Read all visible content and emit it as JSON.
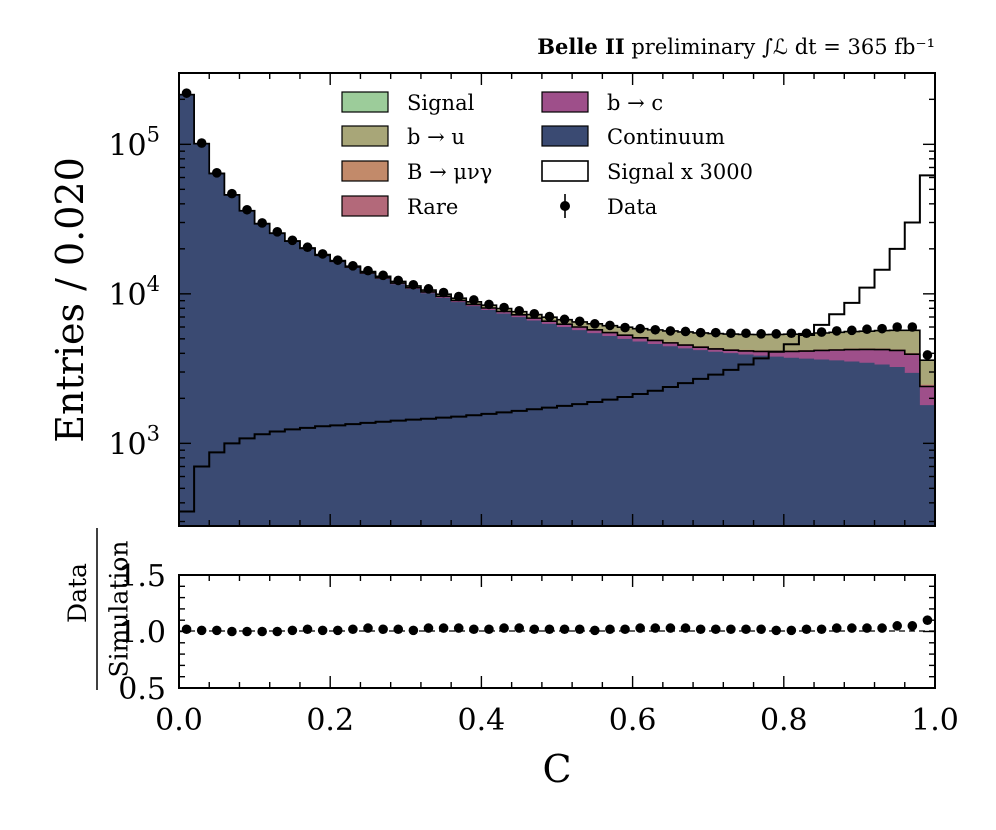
{
  "chart_data": {
    "type": "histogram",
    "header": {
      "experiment": "Belle II",
      "status": "preliminary",
      "lumi_text": "∫ℒ dt = 365 fb⁻¹"
    },
    "bins": {
      "low": 0.0,
      "high": 1.0,
      "count": 50,
      "width": 0.02
    },
    "main": {
      "ylabel": "Entries / 0.020",
      "yscale": "log",
      "ylim": [
        280,
        300000
      ],
      "ytick_values": [
        1000,
        10000,
        100000
      ],
      "ytick_labels": [
        "10",
        "10",
        "10"
      ],
      "ytick_exponents": [
        "3",
        "4",
        "5"
      ],
      "stack_order": [
        "Continuum",
        "b → c",
        "Rare",
        "B → μνγ",
        "b → u",
        "Signal"
      ],
      "colors": {
        "Continuum": "#3a4a72",
        "b → c": "#9e4f8a",
        "Rare": "#b3697a",
        "B → μνγ": "#c28a6a",
        "b → u": "#a8a678",
        "Signal": "#9ccc9a"
      },
      "total_mc": [
        215000,
        101000,
        64000,
        46000,
        36000,
        29500,
        25500,
        22600,
        20300,
        18300,
        16700,
        15300,
        14100,
        13100,
        12100,
        11300,
        10600,
        9950,
        9350,
        8850,
        8400,
        7980,
        7600,
        7270,
        6980,
        6720,
        6490,
        6300,
        6120,
        5980,
        5850,
        5740,
        5650,
        5560,
        5480,
        5420,
        5380,
        5350,
        5340,
        5350,
        5370,
        5410,
        5470,
        5530,
        5590,
        5630,
        5680,
        5700,
        5700,
        3600
      ],
      "continuum": [
        215000,
        101000,
        63500,
        45700,
        35700,
        29200,
        25200,
        22300,
        19900,
        17900,
        16300,
        14900,
        13600,
        12600,
        11600,
        10800,
        10100,
        9400,
        8800,
        8270,
        7800,
        7380,
        6990,
        6630,
        6300,
        6000,
        5720,
        5460,
        5220,
        5000,
        4800,
        4620,
        4460,
        4320,
        4200,
        4100,
        4010,
        3930,
        3860,
        3800,
        3740,
        3690,
        3640,
        3590,
        3530,
        3460,
        3370,
        3240,
        2960,
        1800
      ],
      "bc": [
        215000,
        101000,
        63800,
        45900,
        35900,
        29400,
        25400,
        22500,
        20100,
        18100,
        16500,
        15100,
        13800,
        12800,
        11800,
        11000,
        10300,
        9620,
        9030,
        8500,
        8040,
        7620,
        7240,
        6880,
        6560,
        6270,
        6000,
        5750,
        5510,
        5290,
        5080,
        4880,
        4700,
        4540,
        4400,
        4280,
        4200,
        4150,
        4120,
        4110,
        4120,
        4140,
        4180,
        4210,
        4240,
        4250,
        4240,
        4180,
        3950,
        2400
      ],
      "rare": [
        215000,
        101000,
        63850,
        45950,
        35950,
        29450,
        25450,
        22550,
        20150,
        18150,
        16550,
        15150,
        13850,
        12850,
        11850,
        11050,
        10350,
        9670,
        9080,
        8550,
        8090,
        7670,
        7290,
        6930,
        6610,
        6320,
        6050,
        5800,
        5560,
        5340,
        5130,
        4930,
        4750,
        4590,
        4450,
        4330,
        4250,
        4200,
        4170,
        4160,
        4170,
        4190,
        4230,
        4260,
        4290,
        4300,
        4290,
        4230,
        4000,
        2450
      ],
      "bmunug": [
        215000,
        101000,
        63870,
        45970,
        35970,
        29470,
        25470,
        22570,
        20170,
        18170,
        16570,
        15170,
        13870,
        12870,
        11870,
        11070,
        10370,
        9690,
        9100,
        8570,
        8110,
        7690,
        7310,
        6950,
        6630,
        6340,
        6070,
        5820,
        5580,
        5360,
        5150,
        4950,
        4770,
        4610,
        4470,
        4350,
        4270,
        4220,
        4190,
        4180,
        4190,
        4210,
        4250,
        4280,
        4310,
        4320,
        4310,
        4250,
        4020,
        2470
      ],
      "signal_x3000": [
        350,
        700,
        870,
        1000,
        1080,
        1150,
        1200,
        1240,
        1270,
        1300,
        1320,
        1345,
        1370,
        1395,
        1420,
        1440,
        1460,
        1485,
        1510,
        1540,
        1575,
        1610,
        1650,
        1690,
        1735,
        1780,
        1830,
        1890,
        1960,
        2040,
        2140,
        2250,
        2380,
        2530,
        2700,
        2880,
        3100,
        3370,
        3700,
        4100,
        4600,
        5300,
        6200,
        7300,
        8700,
        11000,
        14500,
        20000,
        30000,
        62000
      ],
      "data": [
        220000,
        102000,
        64500,
        46800,
        36500,
        29800,
        26000,
        22800,
        20500,
        18500,
        16800,
        15400,
        14300,
        13300,
        12300,
        11500,
        10800,
        10200,
        9600,
        9100,
        8500,
        8100,
        7700,
        7350,
        7050,
        6750,
        6550,
        6300,
        6150,
        5950,
        5850,
        5750,
        5650,
        5600,
        5500,
        5500,
        5450,
        5450,
        5400,
        5400,
        5450,
        5450,
        5550,
        5650,
        5700,
        5800,
        5850,
        6000,
        6000,
        3900
      ]
    },
    "ratio": {
      "ylabel_numerator": "Data",
      "ylabel_denominator": "Simulation",
      "ylim": [
        0.5,
        1.5
      ],
      "ytick_labels": [
        "0.5",
        "1.0",
        "1.5"
      ],
      "values": [
        1.02,
        1.01,
        1.01,
        1.0,
        1.0,
        1.0,
        1.0,
        1.01,
        1.02,
        1.01,
        1.01,
        1.02,
        1.03,
        1.02,
        1.02,
        1.01,
        1.03,
        1.03,
        1.03,
        1.02,
        1.02,
        1.03,
        1.03,
        1.02,
        1.02,
        1.02,
        1.02,
        1.01,
        1.02,
        1.02,
        1.03,
        1.03,
        1.03,
        1.03,
        1.02,
        1.02,
        1.02,
        1.02,
        1.02,
        1.01,
        1.01,
        1.02,
        1.02,
        1.03,
        1.03,
        1.03,
        1.03,
        1.05,
        1.05,
        1.1
      ]
    },
    "xlabel": "C",
    "xticks": [
      "0.0",
      "0.2",
      "0.4",
      "0.6",
      "0.8",
      "1.0"
    ],
    "legend": {
      "placement": "top-center",
      "entries": [
        {
          "label": "Signal",
          "kind": "fill",
          "color": "#9ccc9a"
        },
        {
          "label": "b → c",
          "kind": "fill",
          "color": "#9e4f8a"
        },
        {
          "label": "b → u",
          "kind": "fill",
          "color": "#a8a678"
        },
        {
          "label": "Continuum",
          "kind": "fill",
          "color": "#3a4a72"
        },
        {
          "label": "B → μνγ",
          "kind": "fill",
          "color": "#c28a6a"
        },
        {
          "label": "Signal x 3000",
          "kind": "outline",
          "color": "#000000"
        },
        {
          "label": "Rare",
          "kind": "fill",
          "color": "#b3697a"
        },
        {
          "label": "Data",
          "kind": "marker",
          "color": "#000000"
        }
      ]
    }
  }
}
